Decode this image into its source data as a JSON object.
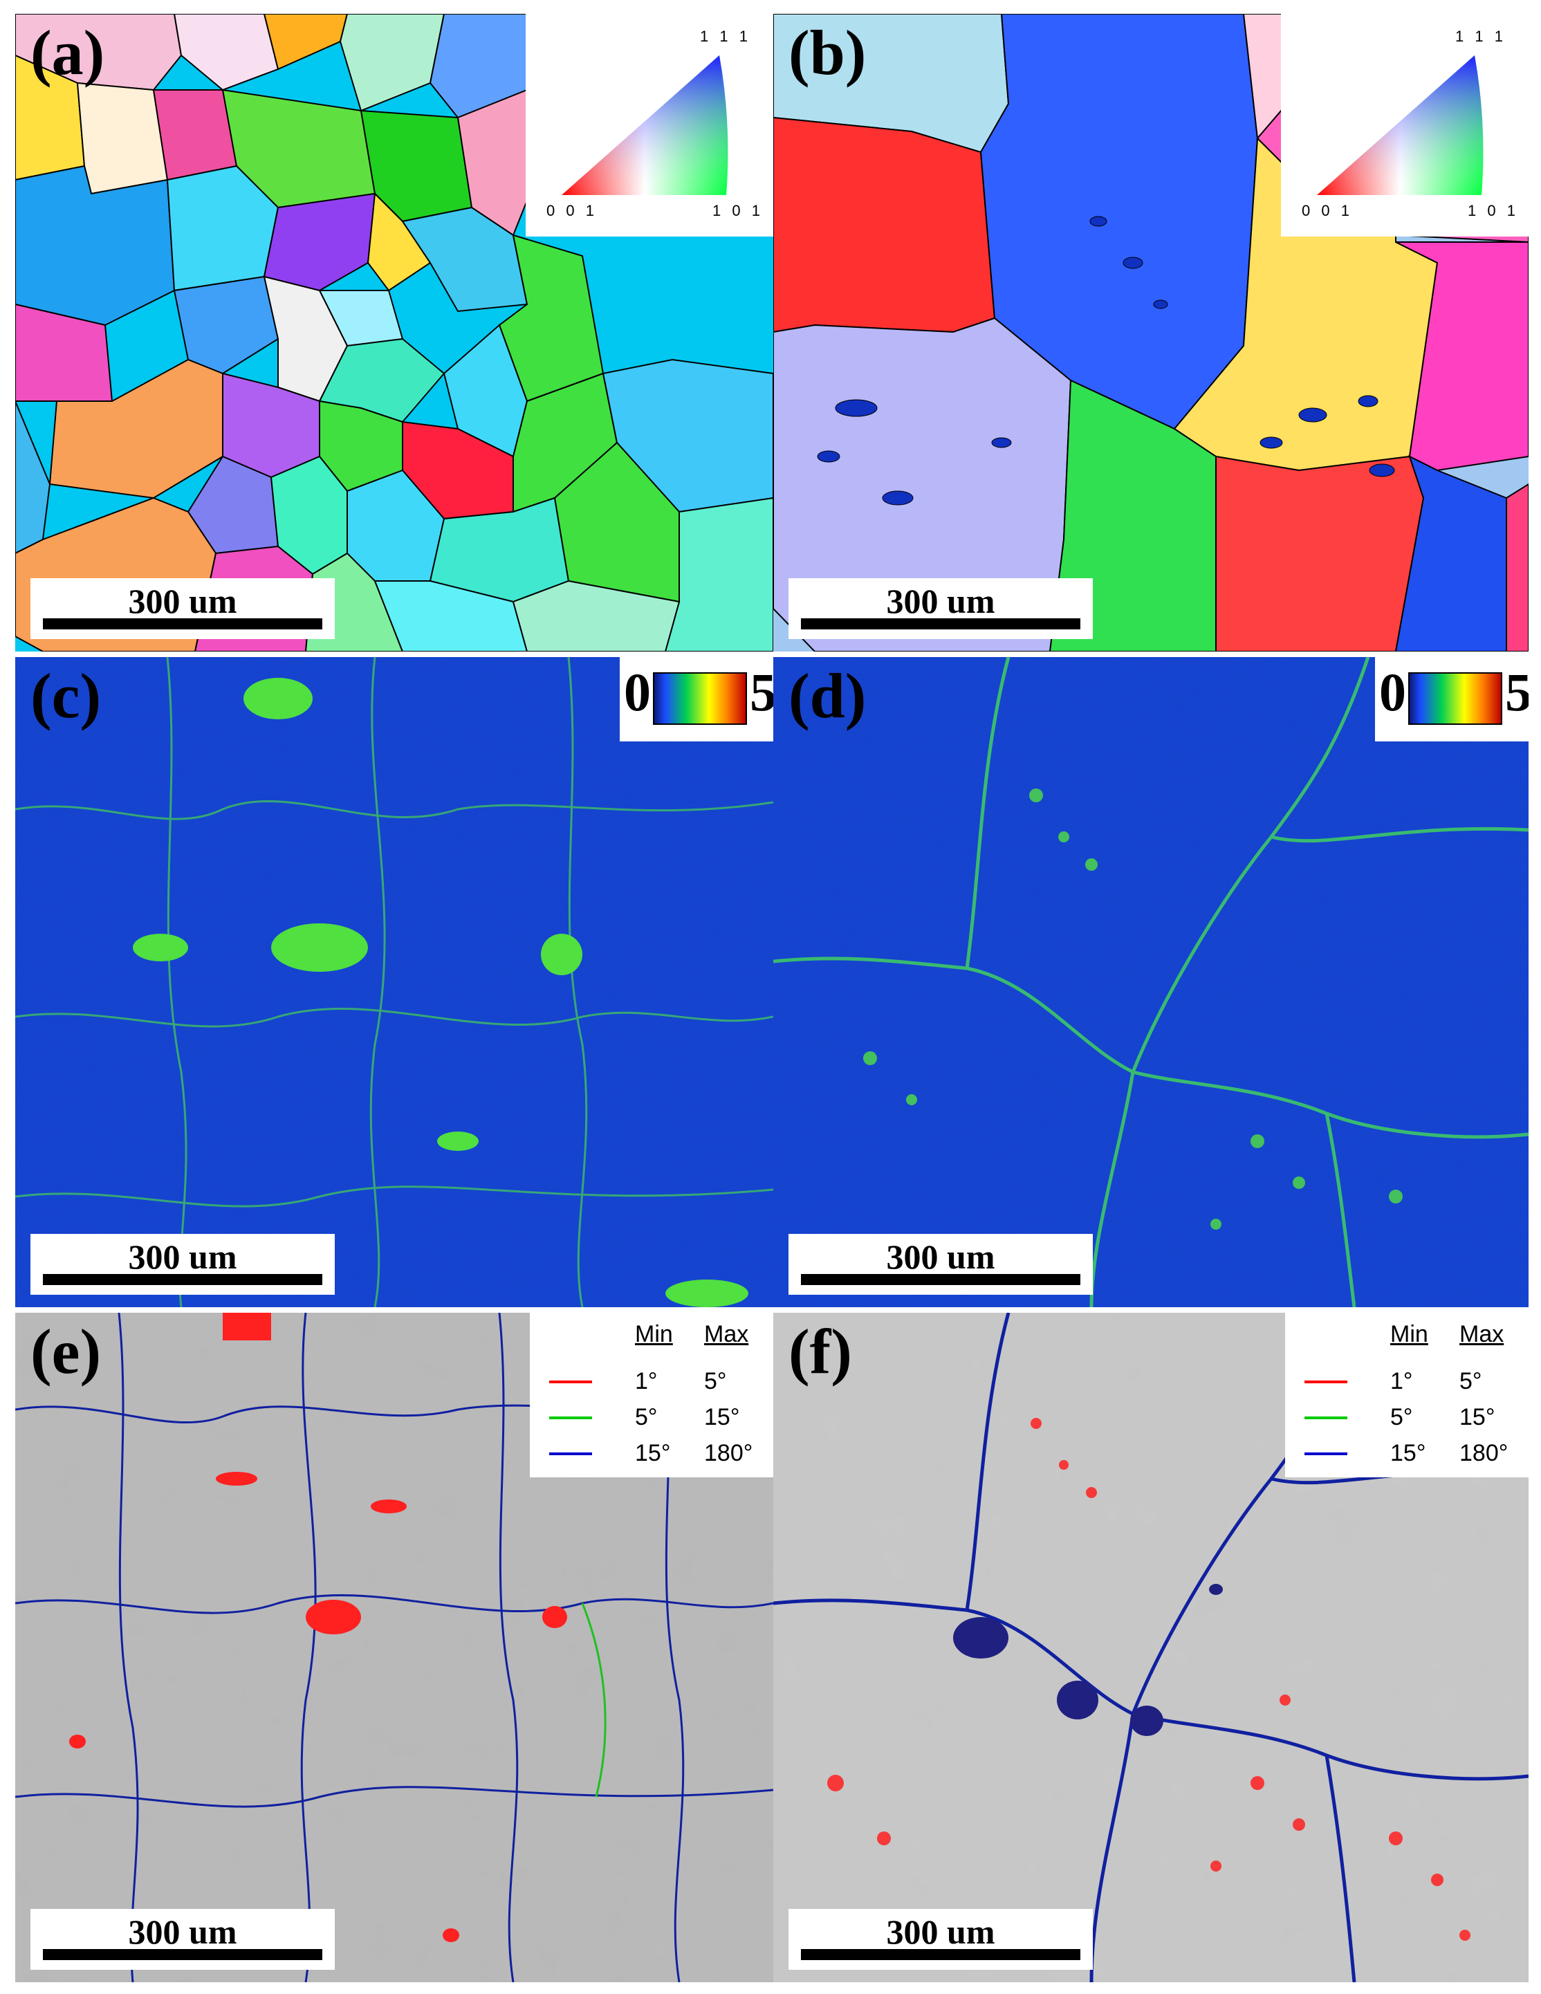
{
  "panels": [
    {
      "id": "a",
      "label": "(a)",
      "scale": "300 um"
    },
    {
      "id": "b",
      "label": "(b)",
      "scale": "300 um"
    },
    {
      "id": "c",
      "label": "(c)",
      "scale": "300 um"
    },
    {
      "id": "d",
      "label": "(d)",
      "scale": "300 um"
    },
    {
      "id": "e",
      "label": "(e)",
      "scale": "300 um"
    },
    {
      "id": "f",
      "label": "(f)",
      "scale": "300 um"
    }
  ],
  "ipf_key": {
    "top": "1 1 1",
    "left": "0 0 1",
    "right": "1 0 1"
  },
  "kam_key": {
    "min": "0",
    "max": "5"
  },
  "gb_legend": {
    "min_header": "Min",
    "max_header": "Max",
    "rows": [
      {
        "color": "#ff0000",
        "min": "1°",
        "max": "5°"
      },
      {
        "color": "#00cc00",
        "min": "5°",
        "max": "15°"
      },
      {
        "color": "#0000cc",
        "min": "15°",
        "max": "180°"
      }
    ]
  }
}
